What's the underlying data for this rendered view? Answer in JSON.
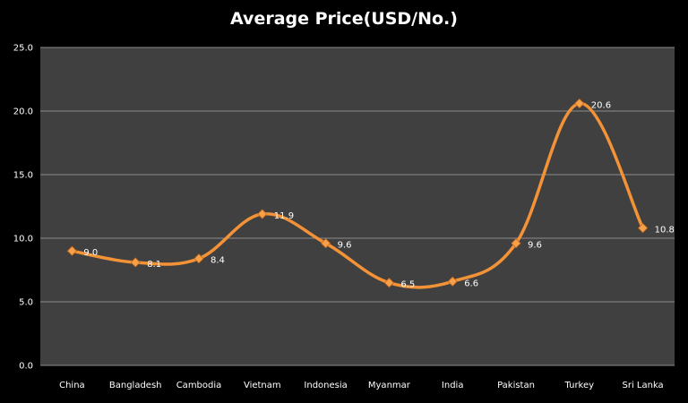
{
  "chart_data": {
    "type": "line",
    "title": "Average Price(USD/No.)",
    "categories": [
      "China",
      "Bangladesh",
      "Cambodia",
      "Vietnam",
      "Indonesia",
      "Myanmar",
      "India",
      "Pakistan",
      "Turkey",
      "Sri Lanka"
    ],
    "values": [
      9.0,
      8.1,
      8.4,
      11.9,
      9.6,
      6.5,
      6.6,
      9.6,
      20.6,
      10.8
    ],
    "value_labels": [
      "9.0",
      "8.1",
      "8.4",
      "11.9",
      "9.6",
      "6.5",
      "6.6",
      "9.6",
      "20.6",
      "10.8"
    ],
    "y_ticks": [
      "0.0",
      "5.0",
      "10.0",
      "15.0",
      "20.0",
      "25.0"
    ],
    "ylim": [
      0,
      25
    ],
    "grid": true,
    "legend": "none",
    "colors": {
      "background": "#000000",
      "plot_area": "#404040",
      "gridline": "#8c8c8c",
      "line": "#f39237",
      "marker": "#f7a04a"
    }
  }
}
